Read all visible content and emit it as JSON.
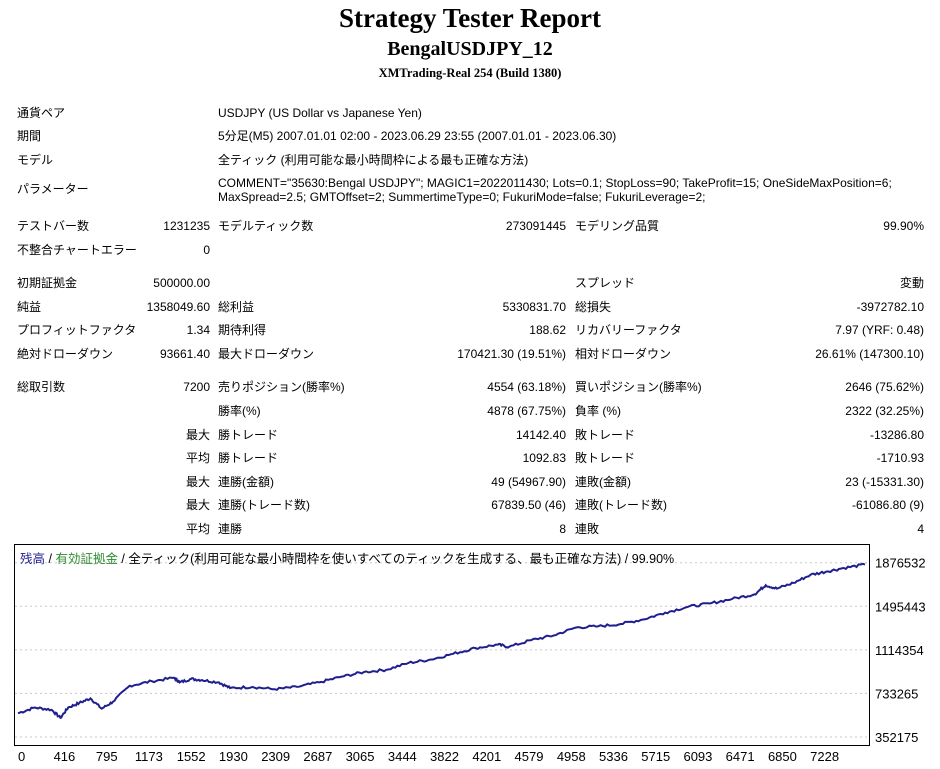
{
  "header": {
    "title": "Strategy Tester Report",
    "ea_name": "BengalUSDJPY_12",
    "server": "XMTrading-Real 254 (Build 1380)"
  },
  "settings": {
    "symbol_label": "通貨ペア",
    "symbol_value": "USDJPY (US Dollar vs Japanese Yen)",
    "period_label": "期間",
    "period_value": "5分足(M5) 2007.01.01 02:00 - 2023.06.29 23:55 (2007.01.01 - 2023.06.30)",
    "model_label": "モデル",
    "model_value": "全ティック (利用可能な最小時間枠による最も正確な方法)",
    "params_label": "パラメーター",
    "params_line1": "COMMENT=\"35630:Bengal USDJPY\"; MAGIC1=2022011430; Lots=0.1; StopLoss=90; TakeProfit=15; OneSideMaxPosition=6;",
    "params_line2": "MaxSpread=2.5; GMTOffset=2; SummertimeType=0; FukuriMode=false; FukuriLeverage=2;"
  },
  "summary": {
    "bars_label": "テストバー数",
    "bars_value": "1231235",
    "ticks_label": "モデルティック数",
    "ticks_value": "273091445",
    "quality_label": "モデリング品質",
    "quality_value": "99.90%",
    "mismatch_label": "不整合チャートエラー",
    "mismatch_value": "0",
    "deposit_label": "初期証拠金",
    "deposit_value": "500000.00",
    "spread_label": "スプレッド",
    "spread_value": "変動",
    "net_label": "純益",
    "net_value": "1358049.60",
    "gross_profit_label": "総利益",
    "gross_profit_value": "5330831.70",
    "gross_loss_label": "総損失",
    "gross_loss_value": "-3972782.10",
    "pf_label": "プロフィットファクタ",
    "pf_value": "1.34",
    "payoff_label": "期待利得",
    "payoff_value": "188.62",
    "recovery_label": "リカバリーファクタ",
    "recovery_value": "7.97 (YRF: 0.48)",
    "abs_dd_label": "絶対ドローダウン",
    "abs_dd_value": "93661.40",
    "max_dd_label": "最大ドローダウン",
    "max_dd_value": "170421.30 (19.51%)",
    "rel_dd_label": "相対ドローダウン",
    "rel_dd_value": "26.61% (147300.10)"
  },
  "trades": {
    "total_label": "総取引数",
    "total_value": "7200",
    "short_label": "売りポジション(勝率%)",
    "short_value": "4554 (63.18%)",
    "long_label": "買いポジション(勝率%)",
    "long_value": "2646 (75.62%)",
    "winrate_label": "勝率(%)",
    "winrate_value": "4878 (67.75%)",
    "lossrate_label": "負率 (%)",
    "lossrate_value": "2322 (32.25%)",
    "max_label": "最大",
    "avg_label": "平均",
    "largest_win_label": "勝トレード",
    "largest_win_value": "14142.40",
    "largest_loss_label": "敗トレード",
    "largest_loss_value": "-13286.80",
    "avg_win_label": "勝トレード",
    "avg_win_value": "1092.83",
    "avg_loss_label": "敗トレード",
    "avg_loss_value": "-1710.93",
    "consec_win_money_label": "連勝(金額)",
    "consec_win_money_value": "49 (54967.90)",
    "consec_loss_money_label": "連敗(金額)",
    "consec_loss_money_value": "23 (-15331.30)",
    "consec_win_count_label": "連勝(トレード数)",
    "consec_win_count_value": "67839.50 (46)",
    "consec_loss_count_label": "連敗(トレード数)",
    "consec_loss_count_value": "-61086.80 (9)",
    "avg_consec_win_label": "連勝",
    "avg_consec_win_value": "8",
    "avg_consec_loss_label": "連敗",
    "avg_consec_loss_value": "4"
  },
  "chart_data": {
    "type": "line",
    "legend": {
      "balance": "残高",
      "sep1": " / ",
      "equity": "有効証拠金",
      "sep2": " / ",
      "desc": "全ティック(利用可能な最小時間枠を使いすべてのティックを生成する、最も正確な方法) / 99.90%"
    },
    "colors": {
      "line": "#1f1f8f",
      "legend_balance": "#1f1f8f",
      "legend_equity": "#2e8b2e",
      "grid": "#c8c8c8"
    },
    "x_ticks": [
      "0",
      "416",
      "795",
      "1173",
      "1552",
      "1930",
      "2309",
      "2687",
      "3065",
      "3444",
      "3822",
      "4201",
      "4579",
      "4958",
      "5336",
      "5715",
      "6093",
      "6471",
      "6850",
      "7228"
    ],
    "x_tick_values": [
      0,
      416,
      795,
      1173,
      1552,
      1930,
      2309,
      2687,
      3065,
      3444,
      3822,
      4201,
      4579,
      4958,
      5336,
      5715,
      6093,
      6471,
      6850,
      7228
    ],
    "y_ticks": [
      "1876532",
      "1495443",
      "1114354",
      "733265",
      "352175"
    ],
    "y_tick_values": [
      1876532,
      1495443,
      1114354,
      733265,
      352175
    ],
    "xlim": [
      0,
      7590
    ],
    "ylim": [
      352175,
      1970000
    ],
    "series": [
      {
        "x": [
          0,
          150,
          300,
          380,
          450,
          550,
          650,
          750,
          850,
          1000,
          1200,
          1400,
          1450,
          1550,
          1650,
          1800,
          1900,
          2100,
          2300,
          2500,
          2700,
          2900,
          3100,
          3300,
          3500,
          3700,
          3900,
          4100,
          4300,
          4400,
          4600,
          4800,
          5000,
          5200,
          5400,
          5600,
          5800,
          6000,
          6200,
          6400,
          6600,
          6700,
          6800,
          6950,
          7100,
          7250,
          7400,
          7590
        ],
        "y": [
          560000,
          610000,
          590000,
          520000,
          610000,
          650000,
          690000,
          600000,
          660000,
          800000,
          840000,
          870000,
          830000,
          860000,
          850000,
          830000,
          780000,
          790000,
          770000,
          790000,
          830000,
          880000,
          920000,
          940000,
          1000000,
          1030000,
          1080000,
          1130000,
          1160000,
          1140000,
          1200000,
          1240000,
          1310000,
          1320000,
          1340000,
          1380000,
          1440000,
          1490000,
          1520000,
          1560000,
          1600000,
          1680000,
          1650000,
          1700000,
          1770000,
          1800000,
          1830000,
          1860000
        ]
      }
    ]
  }
}
